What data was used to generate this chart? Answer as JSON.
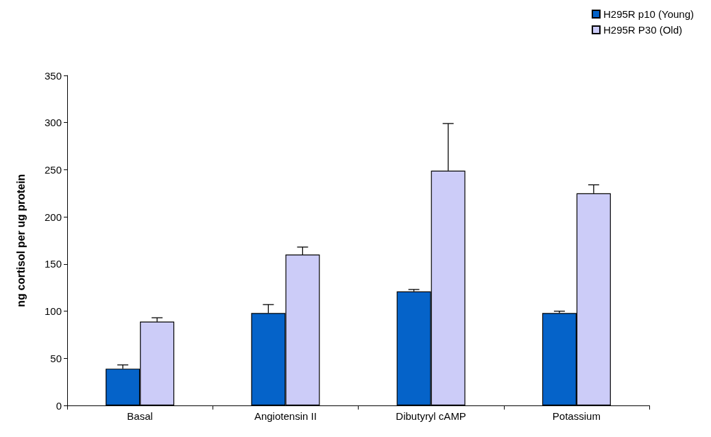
{
  "chart_data": {
    "type": "bar",
    "ylabel": "ng cortisol per ug protein",
    "categories": [
      "Basal",
      "Angiotensin II",
      "Dibutyryl cAMP",
      "Potassium"
    ],
    "series": [
      {
        "name": "H295R p10 (Young)",
        "color": "#0563c9",
        "values": [
          39,
          98,
          121,
          98
        ],
        "errors": [
          [
            39,
            43
          ],
          [
            98,
            107
          ],
          [
            121,
            123
          ],
          [
            98,
            100
          ]
        ]
      },
      {
        "name": "H295R P30 (Old)",
        "color": "#ccccf8",
        "values": [
          89,
          160,
          249,
          225
        ],
        "errors": [
          [
            89,
            93
          ],
          [
            160,
            168
          ],
          [
            249,
            299
          ],
          [
            225,
            234
          ]
        ]
      }
    ],
    "ylim": [
      0,
      350
    ],
    "yticks": [
      0,
      50,
      100,
      150,
      200,
      250,
      300,
      350
    ],
    "grid": false,
    "legend": "top right"
  }
}
